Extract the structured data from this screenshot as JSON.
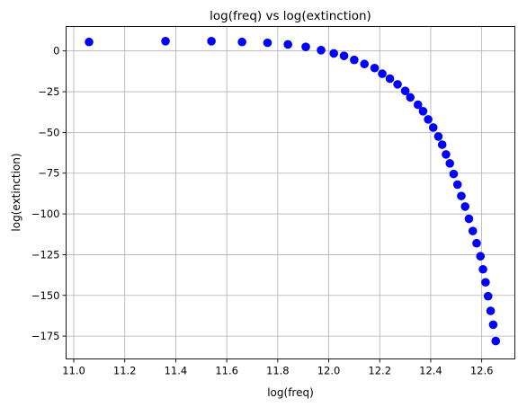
{
  "chart_data": {
    "type": "scatter",
    "title": "log(freq) vs log(extinction)",
    "xlabel": "log(freq)",
    "ylabel": "log(extinction)",
    "xlim": [
      10.97,
      12.73
    ],
    "ylim": [
      -189,
      15
    ],
    "xticks": [
      11.0,
      11.2,
      11.4,
      11.6,
      11.8,
      12.0,
      12.2,
      12.4,
      12.6
    ],
    "xtick_labels": [
      "11.0",
      "11.2",
      "11.4",
      "11.6",
      "11.8",
      "12.0",
      "12.2",
      "12.4",
      "12.6"
    ],
    "yticks": [
      0,
      -25,
      -50,
      -75,
      -100,
      -125,
      -150,
      -175
    ],
    "ytick_labels": [
      "0",
      "−25",
      "−50",
      "−75",
      "−100",
      "−125",
      "−150",
      "−175"
    ],
    "grid": true,
    "marker_color": "#0000ff",
    "x": [
      11.06,
      11.36,
      11.54,
      11.66,
      11.76,
      11.84,
      11.91,
      11.97,
      12.02,
      12.06,
      12.1,
      12.14,
      12.18,
      12.21,
      12.24,
      12.27,
      12.3,
      12.32,
      12.35,
      12.37,
      12.39,
      12.41,
      12.43,
      12.445,
      12.46,
      12.475,
      12.49,
      12.505,
      12.52,
      12.535,
      12.55,
      12.565,
      12.58,
      12.595,
      12.605,
      12.615,
      12.625,
      12.635,
      12.645,
      12.655
    ],
    "y": [
      5.5,
      6.0,
      6.0,
      5.5,
      5.0,
      4.0,
      2.5,
      0.5,
      -1.5,
      -3.0,
      -5.5,
      -8.0,
      -10.5,
      -14.0,
      -17.0,
      -20.5,
      -24.5,
      -28.5,
      -33.0,
      -37.0,
      -42.0,
      -47.0,
      -52.5,
      -57.5,
      -63.5,
      -69.0,
      -75.5,
      -82.0,
      -89.0,
      -95.5,
      -103.0,
      -110.5,
      -118.0,
      -126.0,
      -134.0,
      -142.0,
      -150.5,
      -159.5,
      -168.0,
      -178.0
    ]
  }
}
